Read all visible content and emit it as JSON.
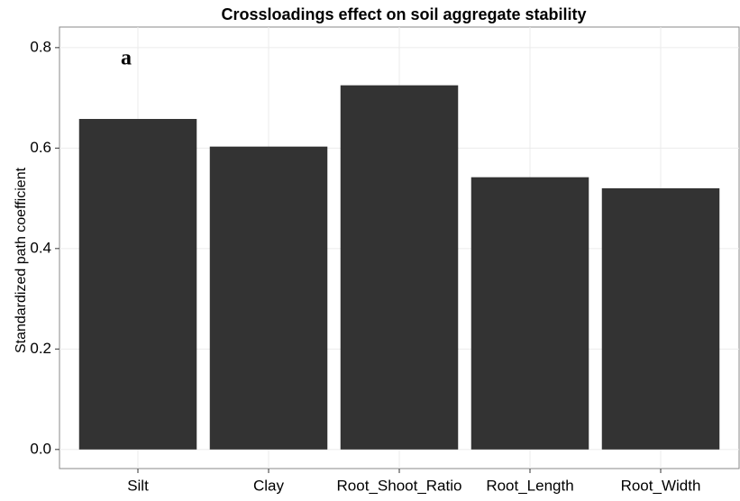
{
  "chart_data": {
    "type": "bar",
    "title": "Crossloadings effect on soil aggregate stability",
    "annotation": "a",
    "y_label": "Standardized path coefficient",
    "categories": [
      "Silt",
      "Clay",
      "Root_Shoot_Ratio",
      "Root_Length",
      "Root_Width"
    ],
    "values": [
      0.658,
      0.603,
      0.725,
      0.542,
      0.52
    ],
    "color": "#333333",
    "ylim": [
      -0.038,
      0.841
    ],
    "yticks": [
      {
        "value": 0,
        "label": "0.0"
      },
      0.2,
      0.4,
      0.6,
      0.8
    ],
    "grid": true
  }
}
